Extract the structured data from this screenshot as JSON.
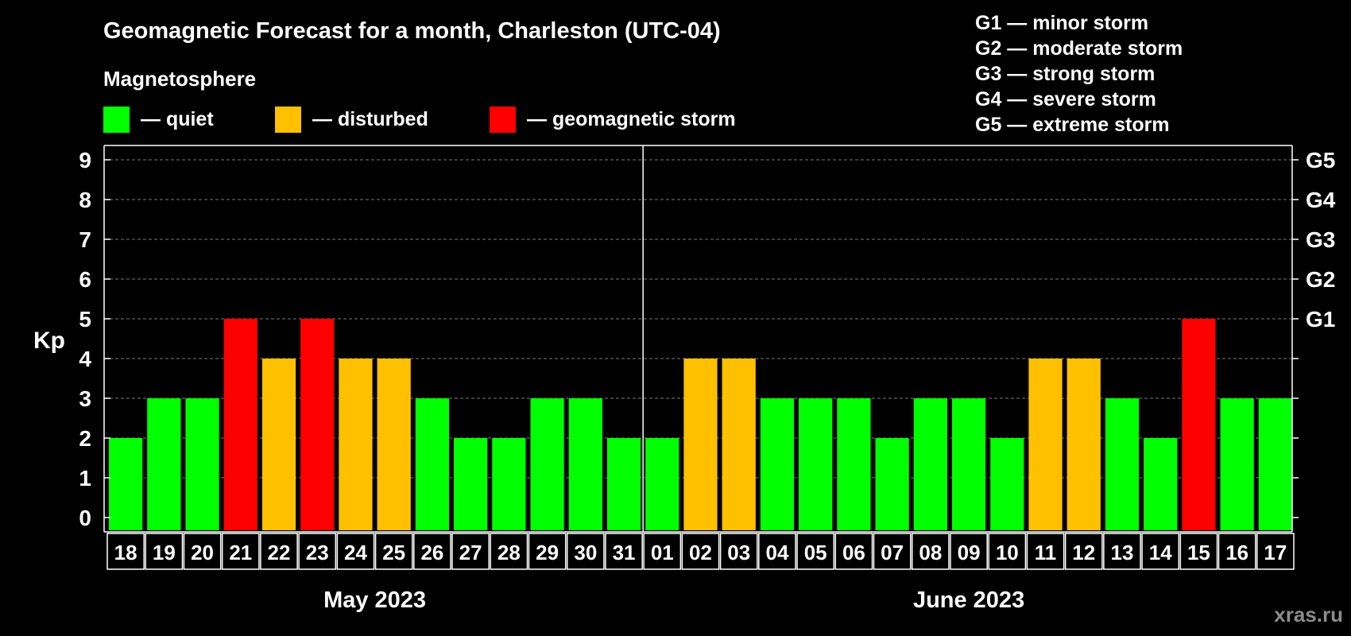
{
  "chart_data": {
    "type": "bar",
    "title": "Geomagnetic Forecast for a month, Charleston (UTC-04)",
    "ylabel": "Kp",
    "ylim": [
      0,
      9
    ],
    "y_ticks": [
      "0",
      "1",
      "2",
      "3",
      "4",
      "5",
      "6",
      "7",
      "8",
      "9"
    ],
    "right_axis_labels": [
      {
        "kp": 5,
        "label": "G1"
      },
      {
        "kp": 6,
        "label": "G2"
      },
      {
        "kp": 7,
        "label": "G3"
      },
      {
        "kp": 8,
        "label": "G4"
      },
      {
        "kp": 9,
        "label": "G5"
      }
    ],
    "categories": [
      "18",
      "19",
      "20",
      "21",
      "22",
      "23",
      "24",
      "25",
      "26",
      "27",
      "28",
      "29",
      "30",
      "31",
      "01",
      "02",
      "03",
      "04",
      "05",
      "06",
      "07",
      "08",
      "09",
      "10",
      "11",
      "12",
      "13",
      "14",
      "15",
      "16",
      "17"
    ],
    "values": [
      2,
      3,
      3,
      5,
      4,
      5,
      4,
      4,
      3,
      2,
      2,
      3,
      3,
      2,
      2,
      4,
      4,
      3,
      3,
      3,
      2,
      3,
      3,
      2,
      4,
      4,
      3,
      2,
      5,
      3,
      3
    ],
    "months": [
      {
        "label": "May 2023",
        "first_index": 0,
        "last_index": 13
      },
      {
        "label": "June 2023",
        "first_index": 14,
        "last_index": 30
      }
    ],
    "grid": true,
    "legend": {
      "heading": "Magnetosphere",
      "entries": [
        {
          "label": "— quiet",
          "color": "#00ff00",
          "kp_min": 0,
          "kp_max": 3
        },
        {
          "label": "— disturbed",
          "color": "#ffc000",
          "kp_min": 4,
          "kp_max": 4
        },
        {
          "label": "— geomagnetic storm",
          "color": "#ff0000",
          "kp_min": 5,
          "kp_max": 9
        }
      ]
    },
    "storm_scale": [
      "G1 — minor storm",
      "G2 — moderate storm",
      "G3 — strong storm",
      "G4 — severe storm",
      "G5 — extreme storm"
    ]
  },
  "watermark": "xras.ru"
}
